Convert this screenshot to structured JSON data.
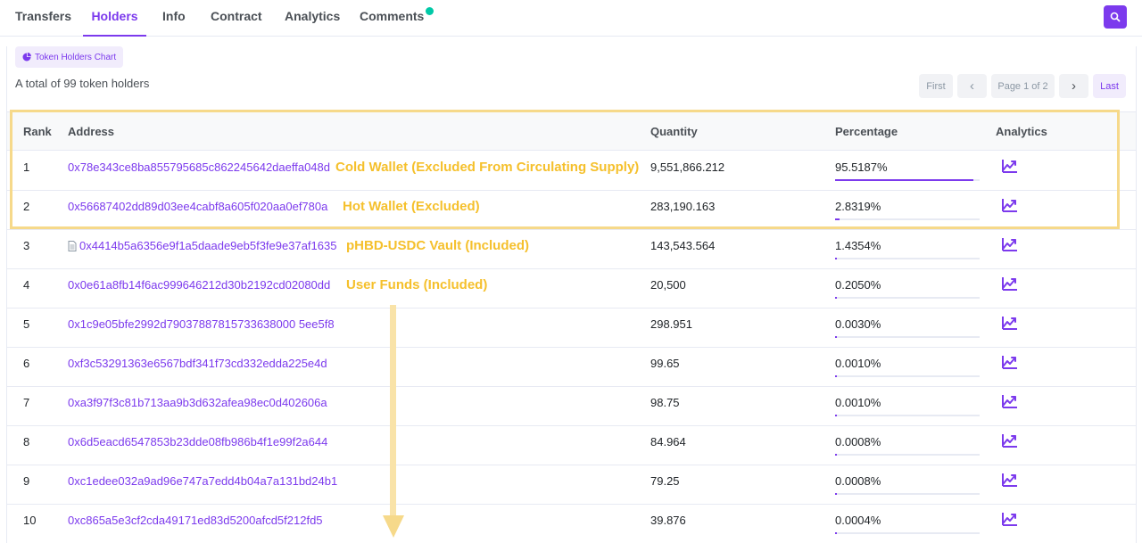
{
  "tabs": [
    {
      "label": "Transfers",
      "active": false
    },
    {
      "label": "Holders",
      "active": true
    },
    {
      "label": "Info",
      "active": false
    },
    {
      "label": "Contract",
      "active": false
    },
    {
      "label": "Analytics",
      "active": false
    },
    {
      "label": "Comments",
      "active": false
    }
  ],
  "toolbar": {
    "chart_button_label": "Token Holders Chart",
    "total_text": "A total of 99 token holders"
  },
  "pagination": {
    "first": "First",
    "prev": "‹",
    "page_info": "Page 1 of 2",
    "next": "›",
    "last": "Last"
  },
  "table": {
    "columns": [
      "Rank",
      "Address",
      "Quantity",
      "Percentage",
      "Analytics"
    ],
    "rows": [
      {
        "rank": "1",
        "address": "0x78e343ce8ba855795685c862245642daeffa048d",
        "contract": false,
        "note": "Cold Wallet (Excluded From Circulating Supply)",
        "quantity": "9,551,866.212",
        "percentage": "95.5187%",
        "pct": 95.5187
      },
      {
        "rank": "2",
        "address": "0x56687402dd89d03ee4cabf8a605f020aa0ef780a",
        "contract": false,
        "note": "Hot Wallet (Excluded)",
        "quantity": "283,190.163",
        "percentage": "2.8319%",
        "pct": 2.8319
      },
      {
        "rank": "3",
        "address": "0x4414b5a6356e9f1a5daade9eb5f3fe9e37af1635",
        "contract": true,
        "note": "pHBD-USDC Vault (Included)",
        "quantity": "143,543.564",
        "percentage": "1.4354%",
        "pct": 1.4354
      },
      {
        "rank": "4",
        "address": "0x0e61a8fb14f6ac999646212d30b2192cd02080dd",
        "contract": false,
        "note": "User Funds (Included)",
        "quantity": "20,500",
        "percentage": "0.2050%",
        "pct": 0.205
      },
      {
        "rank": "5",
        "address": "0x1c9e05bfe2992d79037887815733638000 5ee5f8",
        "contract": false,
        "note": "",
        "quantity": "298.951",
        "percentage": "0.0030%",
        "pct": 0.003
      },
      {
        "rank": "6",
        "address": "0xf3c53291363e6567bdf341f73cd332edda225e4d",
        "contract": false,
        "note": "",
        "quantity": "99.65",
        "percentage": "0.0010%",
        "pct": 0.001
      },
      {
        "rank": "7",
        "address": "0xa3f97f3c81b713aa9b3d632afea98ec0d402606a",
        "contract": false,
        "note": "",
        "quantity": "98.75",
        "percentage": "0.0010%",
        "pct": 0.001
      },
      {
        "rank": "8",
        "address": "0x6d5eacd6547853b23dde08fb986b4f1e99f2a644",
        "contract": false,
        "note": "",
        "quantity": "84.964",
        "percentage": "0.0008%",
        "pct": 0.0008
      },
      {
        "rank": "9",
        "address": "0xc1edee032a9ad96e747a7edd4b04a7a131bd24b1",
        "contract": false,
        "note": "",
        "quantity": "79.25",
        "percentage": "0.0008%",
        "pct": 0.0008
      },
      {
        "rank": "10",
        "address": "0xc865a5e3cf2cda49171ed83d5200afcd5f212fd5",
        "contract": false,
        "note": "",
        "quantity": "39.876",
        "percentage": "0.0004%",
        "pct": 0.0004
      }
    ]
  },
  "icons": {
    "search": "search-icon",
    "chart": "pie-chart-icon",
    "analytics": "trend-chart-icon",
    "contract": "document-icon"
  },
  "colors": {
    "accent": "#7c3aed",
    "annotation": "#f5c02c",
    "status_dot": "#00c9a7"
  }
}
